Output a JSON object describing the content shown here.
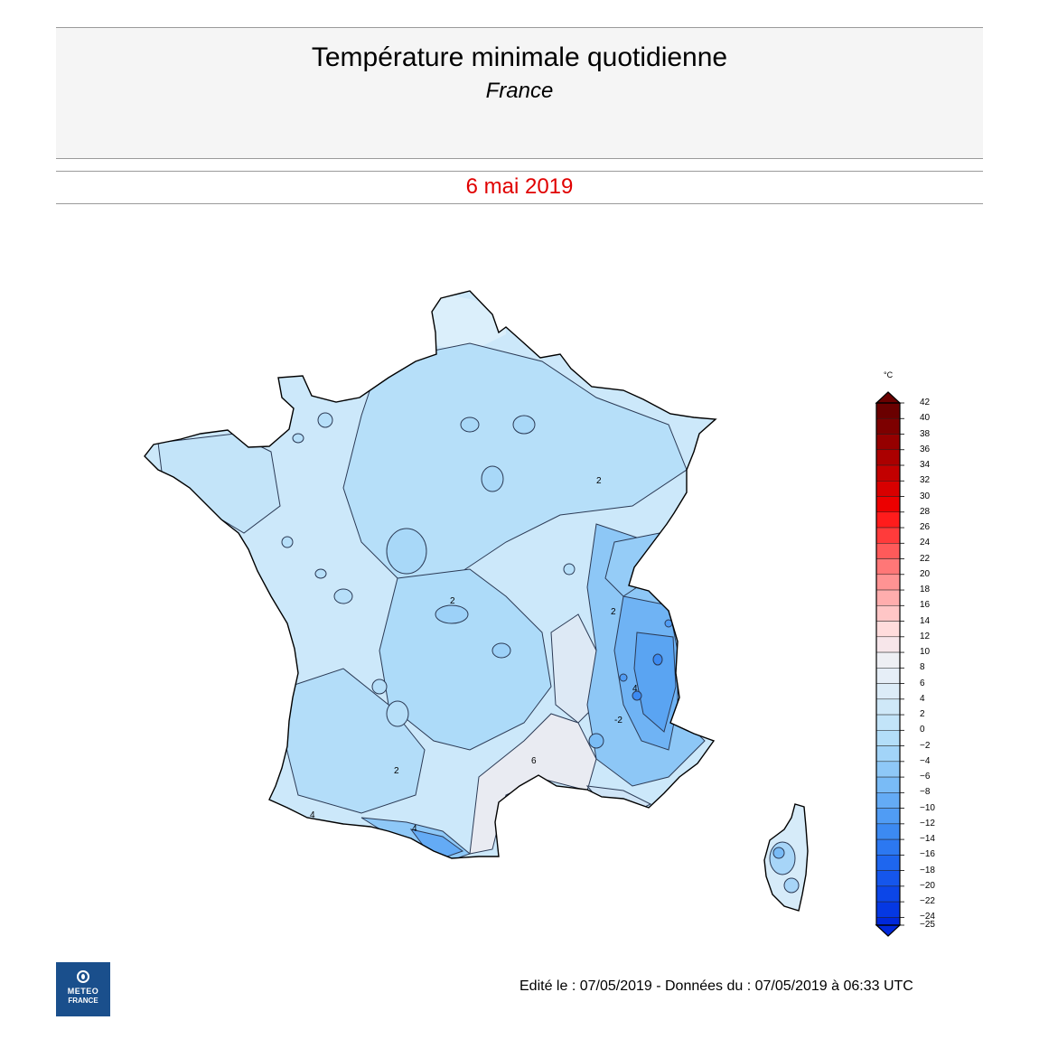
{
  "header": {
    "title": "Température minimale quotidienne",
    "subtitle": "France",
    "date": "6 mai 2019"
  },
  "map": {
    "regions": [
      "France",
      "Corse"
    ],
    "contour_labels": [
      "2",
      "2",
      "2",
      "2",
      "4",
      "4",
      "6",
      "-2",
      "4"
    ]
  },
  "legend": {
    "unit": "°C",
    "values": [
      42,
      40,
      38,
      36,
      34,
      32,
      30,
      28,
      26,
      24,
      22,
      20,
      18,
      16,
      14,
      12,
      10,
      8,
      6,
      4,
      2,
      0,
      -2,
      -4,
      -6,
      -8,
      -10,
      -12,
      -14,
      -16,
      -18,
      -20,
      -22,
      -24,
      -25
    ],
    "labels": [
      "42",
      "40",
      "38",
      "36",
      "34",
      "32",
      "30",
      "28",
      "26",
      "24",
      "22",
      "20",
      "18",
      "16",
      "14",
      "12",
      "10",
      "8",
      "6",
      "4",
      "2",
      "0",
      "−2",
      "−4",
      "−6",
      "−8",
      "−10",
      "−12",
      "−14",
      "−16",
      "−18",
      "−20",
      "−22",
      "−24",
      "−25"
    ],
    "colors": [
      "#6a0000",
      "#7d0000",
      "#950000",
      "#ab0000",
      "#c20000",
      "#d80000",
      "#ec0000",
      "#ff1c1c",
      "#ff3b3b",
      "#ff5a5a",
      "#ff7777",
      "#ff9393",
      "#ffadad",
      "#ffc6c6",
      "#ffdcdc",
      "#f7e6ea",
      "#eeeff4",
      "#e6eef7",
      "#dcecf8",
      "#cfe8f8",
      "#c2e4f9",
      "#b3def9",
      "#a2d4f8",
      "#8ec8f7",
      "#79bbf6",
      "#64abf5",
      "#509cf4",
      "#3c8af2",
      "#2c78f1",
      "#1e66ef",
      "#1556ec",
      "#0c46e8",
      "#0538e3",
      "#0028dc"
    ]
  },
  "footer": {
    "edit_info": "Edité le : 07/05/2019 - Données du : 07/05/2019 à 06:33 UTC",
    "logo_line1": "METEO",
    "logo_line2": "FRANCE"
  }
}
